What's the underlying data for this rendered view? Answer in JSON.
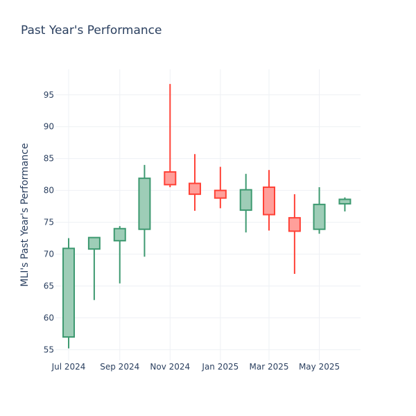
{
  "chart_data": {
    "type": "candlestick",
    "title": "Past Year's Performance",
    "ylabel": "MLI's Past Year's Performance",
    "xlabel": "",
    "ylim": [
      53.3,
      99
    ],
    "y_ticks": [
      55,
      60,
      65,
      70,
      75,
      80,
      85,
      90,
      95
    ],
    "x_ticks": [
      "Jul 2024",
      "Sep 2024",
      "Nov 2024",
      "Jan 2025",
      "Mar 2025",
      "May 2025"
    ],
    "x_tick_dates": [
      "2024-07-01",
      "2024-09-01",
      "2024-11-01",
      "2025-01-01",
      "2025-03-01",
      "2025-05-01"
    ],
    "x_range": [
      "2024-06-15",
      "2025-06-20"
    ],
    "grid": true,
    "colors": {
      "increasing_line": "#3d9970",
      "increasing_fill": "#9ecdb7",
      "decreasing_line": "#ff4136",
      "decreasing_fill": "#ff9f9a",
      "grid": "#eef0f4",
      "text": "#2a3f5f"
    },
    "candles": [
      {
        "date": "2024-07-01",
        "open": 57.0,
        "high": 72.5,
        "low": 55.2,
        "close": 70.9
      },
      {
        "date": "2024-08-01",
        "open": 70.8,
        "high": 72.6,
        "low": 62.8,
        "close": 72.6
      },
      {
        "date": "2024-09-01",
        "open": 72.1,
        "high": 74.4,
        "low": 65.4,
        "close": 74.0
      },
      {
        "date": "2024-10-01",
        "open": 73.9,
        "high": 84.0,
        "low": 69.6,
        "close": 81.9
      },
      {
        "date": "2024-11-01",
        "open": 82.9,
        "high": 96.7,
        "low": 80.5,
        "close": 80.9
      },
      {
        "date": "2024-12-01",
        "open": 81.1,
        "high": 85.7,
        "low": 76.8,
        "close": 79.4
      },
      {
        "date": "2025-01-01",
        "open": 80.0,
        "high": 83.7,
        "low": 77.2,
        "close": 78.8
      },
      {
        "date": "2025-02-01",
        "open": 76.9,
        "high": 82.6,
        "low": 73.4,
        "close": 80.1
      },
      {
        "date": "2025-03-01",
        "open": 80.5,
        "high": 83.2,
        "low": 73.7,
        "close": 76.2
      },
      {
        "date": "2025-04-01",
        "open": 75.7,
        "high": 79.4,
        "low": 66.9,
        "close": 73.6
      },
      {
        "date": "2025-05-01",
        "open": 73.9,
        "high": 80.5,
        "low": 73.2,
        "close": 77.8
      },
      {
        "date": "2025-06-01",
        "open": 77.9,
        "high": 78.9,
        "low": 76.7,
        "close": 78.6
      }
    ]
  }
}
